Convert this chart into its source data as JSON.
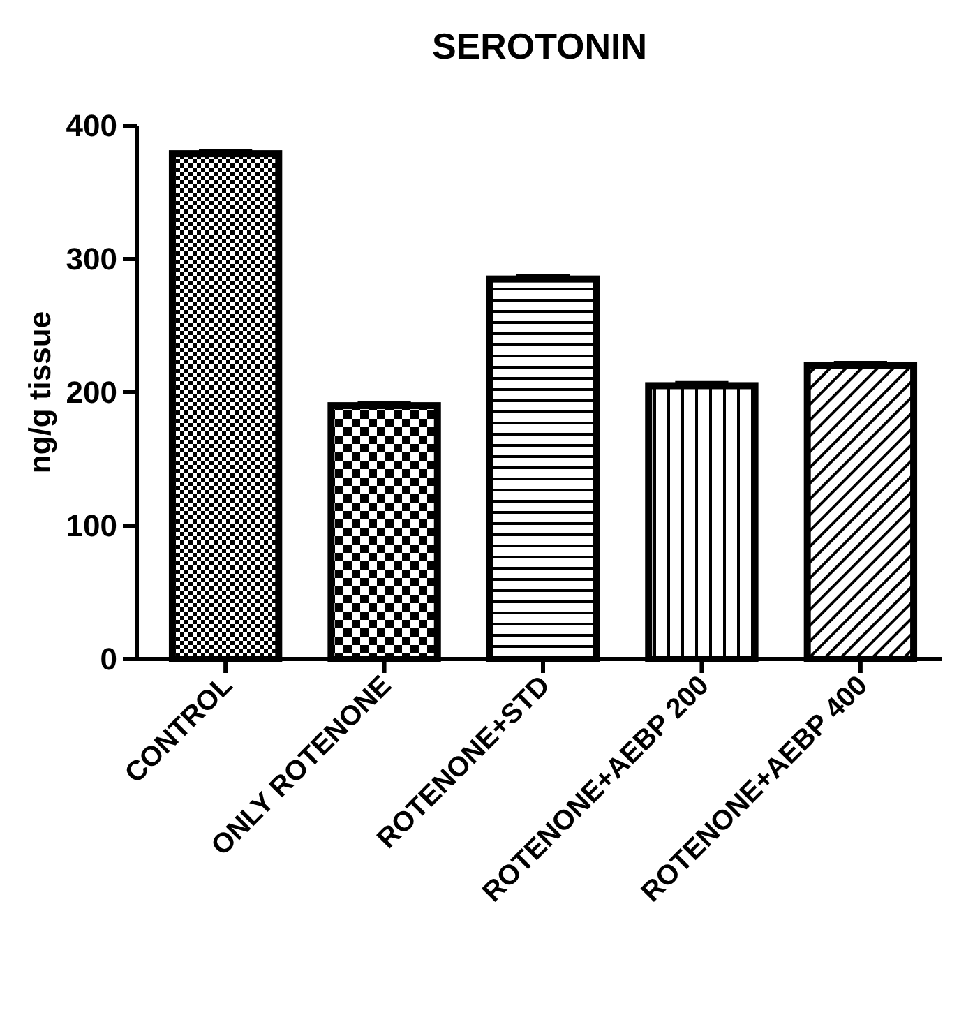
{
  "chart_data": {
    "type": "bar",
    "title": "SEROTONIN",
    "ylabel": "ng/g tissue",
    "categories": [
      "CONTROL",
      "ONLY ROTENONE",
      "ROTENONE+STD",
      "ROTENONE+AEBP 200",
      "ROTENONE+AEBP 400"
    ],
    "values": [
      379,
      190,
      285,
      205,
      220
    ],
    "errors": [
      2,
      2,
      2,
      2,
      2
    ],
    "color": "#000000",
    "ylim": [
      0,
      400
    ],
    "yticks": [
      0,
      100,
      200,
      300,
      400
    ],
    "grid": false
  }
}
